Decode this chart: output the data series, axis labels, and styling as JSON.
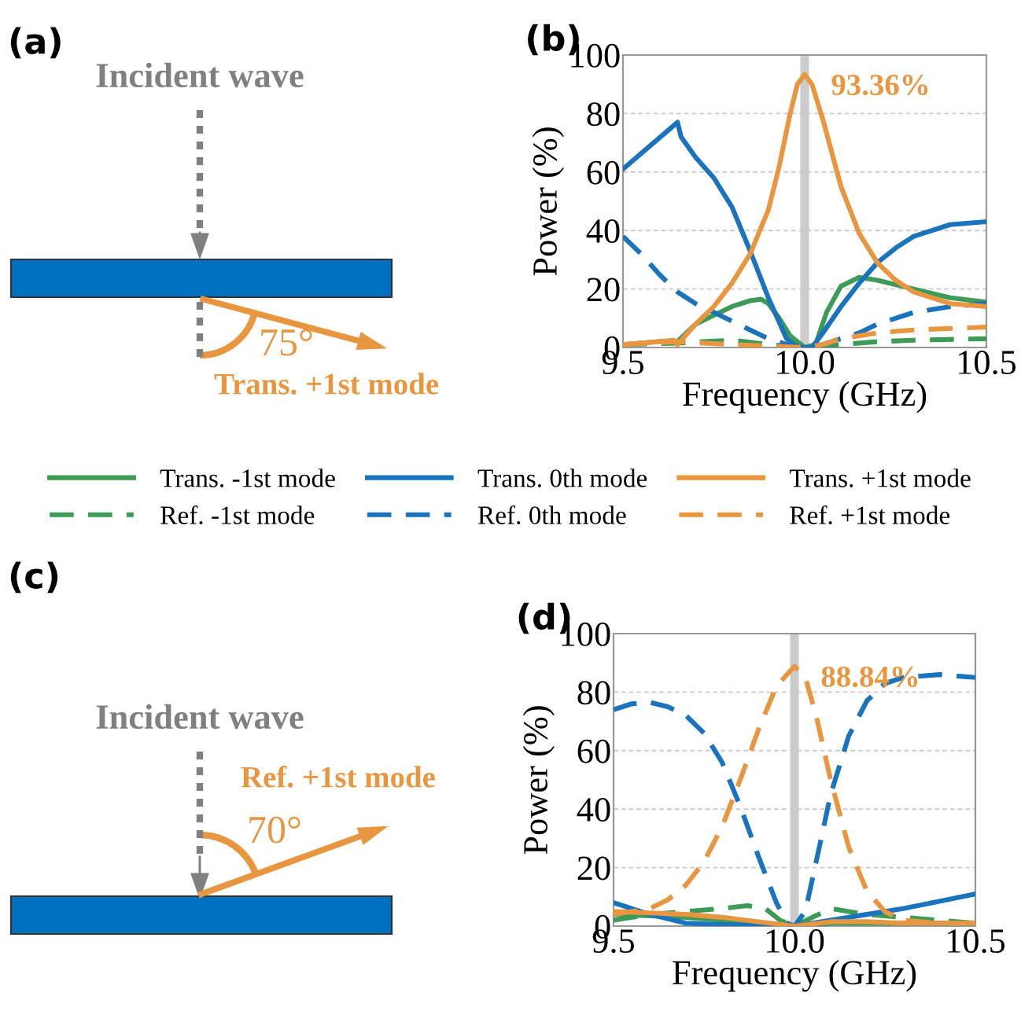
{
  "chart_data": [
    {
      "type": "other",
      "title": "(a)",
      "annotations": [
        "Incident wave",
        "75°",
        "Trans. +1st mode"
      ]
    },
    {
      "type": "line",
      "title": "(b)",
      "xlabel": "Frequency (GHz)",
      "ylabel": "Power (%)",
      "xlim": [
        9.5,
        10.5
      ],
      "xticks": [
        {
          "value": 9.5,
          "label": "9.5"
        },
        {
          "value": 10.0,
          "label": "10.0"
        },
        {
          "value": 10.5,
          "label": "10.5"
        }
      ],
      "ylim": [
        0,
        100
      ],
      "yticks": [
        0,
        20,
        40,
        60,
        80,
        100
      ],
      "grid": "y",
      "legend": "bottom",
      "ref_lines": [
        {
          "axis": "x",
          "value": 10.0,
          "color": "#cccccc"
        }
      ],
      "annotations": [
        {
          "text": "93.36%",
          "x": 10.0,
          "y": 93.36
        }
      ],
      "series": [
        {
          "name": "Trans. -1st mode",
          "color": "#3d9b57",
          "line_style": "solid",
          "x": [
            9.5,
            9.6,
            9.65,
            9.7,
            9.75,
            9.8,
            9.85,
            9.88,
            9.9,
            9.93,
            9.96,
            10.0,
            10.03,
            10.06,
            10.1,
            10.15,
            10.2,
            10.3,
            10.4,
            10.5
          ],
          "values": [
            1,
            2,
            2,
            8,
            11,
            14,
            16,
            16.5,
            15,
            10,
            4,
            0,
            1,
            12,
            21,
            24,
            23,
            20,
            17,
            15.5
          ]
        },
        {
          "name": "Ref. -1st mode",
          "color": "#3d9b57",
          "line_style": "dashed",
          "x": [
            9.5,
            9.65,
            9.8,
            9.9,
            10.0,
            10.1,
            10.2,
            10.3,
            10.5
          ],
          "values": [
            1,
            1.5,
            2.5,
            1,
            0,
            1,
            2,
            2.5,
            3
          ]
        },
        {
          "name": "Trans. 0th mode",
          "color": "#1a74bd",
          "line_style": "solid",
          "x": [
            9.5,
            9.65,
            9.66,
            9.7,
            9.75,
            9.8,
            9.85,
            9.9,
            9.95,
            9.98,
            10.02,
            10.05,
            10.1,
            10.15,
            10.2,
            10.25,
            10.3,
            10.4,
            10.5
          ],
          "values": [
            61,
            77,
            72,
            65,
            58,
            48,
            33,
            17,
            3,
            0,
            0,
            5,
            14,
            22,
            29,
            34,
            38,
            42,
            43
          ]
        },
        {
          "name": "Ref. 0th mode",
          "color": "#1a74bd",
          "line_style": "dashed",
          "x": [
            9.5,
            9.55,
            9.6,
            9.65,
            9.7,
            9.75,
            9.8,
            9.85,
            9.9,
            9.95,
            10.0,
            10.05,
            10.1,
            10.15,
            10.2,
            10.25,
            10.3,
            10.4,
            10.5
          ],
          "values": [
            38,
            32,
            25,
            19,
            15,
            12,
            9,
            6,
            3,
            1,
            0,
            1,
            3,
            5,
            8,
            10,
            12,
            14,
            15
          ]
        },
        {
          "name": "Trans. +1st mode",
          "color": "#e8963f",
          "line_style": "solid",
          "x": [
            9.5,
            9.6,
            9.64,
            9.65,
            9.7,
            9.75,
            9.8,
            9.85,
            9.9,
            9.93,
            9.96,
            9.98,
            10.0,
            10.02,
            10.05,
            10.1,
            10.15,
            10.2,
            10.25,
            10.3,
            10.4,
            10.5
          ],
          "values": [
            1,
            2,
            2.5,
            1,
            8,
            14,
            22,
            32,
            47,
            62,
            80,
            90,
            93.36,
            90,
            78,
            55,
            39,
            29,
            23,
            19,
            15,
            14
          ]
        },
        {
          "name": "Ref. +1st mode",
          "color": "#e8963f",
          "line_style": "dashed",
          "x": [
            9.5,
            9.65,
            9.8,
            9.9,
            10.0,
            10.05,
            10.1,
            10.2,
            10.3,
            10.5
          ],
          "values": [
            1,
            2,
            1,
            0.5,
            0,
            1,
            3,
            5,
            6,
            7
          ]
        }
      ]
    },
    {
      "type": "other",
      "title": "(c)",
      "annotations": [
        "Incident wave",
        "Ref. +1st mode",
        "70°"
      ]
    },
    {
      "type": "line",
      "title": "(d)",
      "xlabel": "Frequency (GHz)",
      "ylabel": "Power (%)",
      "xlim": [
        9.5,
        10.5
      ],
      "xticks": [
        {
          "value": 9.5,
          "label": "9.5"
        },
        {
          "value": 10.0,
          "label": "10.0"
        },
        {
          "value": 10.5,
          "label": "10.5"
        }
      ],
      "ylim": [
        0,
        100
      ],
      "yticks": [
        0,
        20,
        40,
        60,
        80,
        100
      ],
      "grid": "y",
      "ref_lines": [
        {
          "axis": "x",
          "value": 10.0,
          "color": "#cccccc"
        }
      ],
      "annotations": [
        {
          "text": "88.84%",
          "x": 10.0,
          "y": 88.84
        }
      ],
      "series": [
        {
          "color": "#3d9b57",
          "line_style": "solid",
          "x": [
            9.5,
            9.6,
            9.7,
            9.8,
            9.9,
            10.0,
            10.1,
            10.3,
            10.5
          ],
          "values": [
            4,
            3.5,
            3,
            2,
            1,
            0,
            1,
            1,
            1
          ]
        },
        {
          "color": "#3d9b57",
          "line_style": "dashed",
          "x": [
            9.5,
            9.6,
            9.7,
            9.8,
            9.87,
            9.92,
            9.96,
            10.0,
            10.05,
            10.1,
            10.15,
            10.2,
            10.3,
            10.4,
            10.5
          ],
          "values": [
            2,
            4,
            5,
            6,
            7,
            6,
            2,
            0,
            3,
            6,
            5,
            4,
            3,
            2,
            1
          ]
        },
        {
          "color": "#1a74bd",
          "line_style": "solid",
          "x": [
            9.5,
            9.6,
            9.7,
            9.8,
            10.0,
            10.1,
            10.2,
            10.3,
            10.4,
            10.5
          ],
          "values": [
            8,
            4,
            1,
            0.5,
            0,
            2,
            4,
            6,
            8.5,
            11
          ]
        },
        {
          "color": "#1a74bd",
          "line_style": "dashed",
          "x": [
            9.5,
            9.55,
            9.6,
            9.65,
            9.7,
            9.75,
            9.8,
            9.85,
            9.9,
            9.95,
            9.98,
            10.0,
            10.03,
            10.06,
            10.1,
            10.15,
            10.2,
            10.25,
            10.3,
            10.4,
            10.5
          ],
          "values": [
            74,
            76,
            76.5,
            75,
            72,
            66,
            56,
            41,
            24,
            8,
            1,
            0,
            5,
            22,
            45,
            65,
            77,
            83,
            85,
            86,
            85
          ]
        },
        {
          "color": "#e8963f",
          "line_style": "solid",
          "x": [
            9.5,
            9.6,
            9.7,
            9.8,
            9.9,
            10.0,
            10.1,
            10.2,
            10.3,
            10.5
          ],
          "values": [
            5,
            4.5,
            4,
            3,
            1.5,
            0,
            1.5,
            1.5,
            1,
            1
          ]
        },
        {
          "color": "#e8963f",
          "line_style": "dashed",
          "x": [
            9.5,
            9.6,
            9.65,
            9.7,
            9.75,
            9.8,
            9.85,
            9.9,
            9.95,
            10.0,
            10.03,
            10.06,
            10.1,
            10.15,
            10.2,
            10.25,
            10.3,
            10.4,
            10.5
          ],
          "values": [
            4,
            6,
            9,
            14,
            22,
            34,
            50,
            67,
            82,
            88.84,
            85,
            72,
            50,
            27,
            12,
            5,
            2,
            1,
            1
          ]
        }
      ]
    }
  ]
}
